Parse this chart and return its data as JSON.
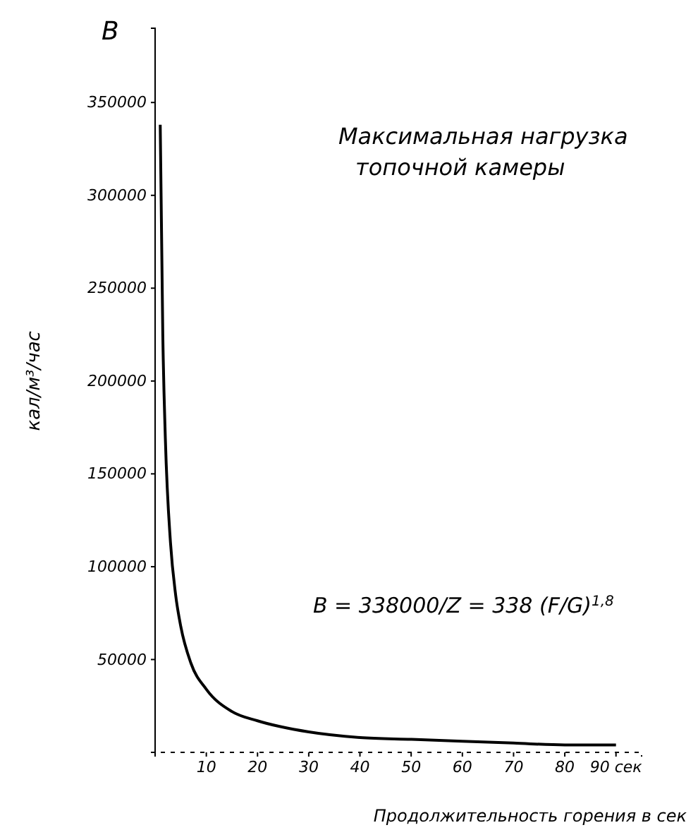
{
  "chart_data": {
    "type": "line",
    "title": "Максимальная нагрузка топочной камеры",
    "xlabel": "Продолжительность горения в сек",
    "ylabel": "кал/м³/час",
    "annotations": [
      "B",
      "B = 338000/Z = 338 (F/G)$^{1,8}$"
    ],
    "x": [
      1,
      1.5,
      2,
      3,
      4,
      5,
      7,
      10,
      15,
      20,
      30,
      40,
      50,
      60,
      70,
      80,
      90
    ],
    "series": [
      {
        "color": "#000000",
        "values": [
          338000,
          225000,
          169000,
          113000,
          85000,
          68000,
          48000,
          34000,
          22000,
          17000,
          11000,
          8000,
          7000,
          6000,
          5000,
          4000,
          4000
        ]
      }
    ],
    "xlim": [
      0,
      95
    ],
    "xticks": [
      10,
      20,
      30,
      40,
      50,
      60,
      70,
      80,
      {
        "value": 90,
        "label": "90 сек"
      }
    ],
    "ylim": [
      0,
      390000
    ],
    "yticks": [
      50000,
      100000,
      150000,
      200000,
      250000,
      300000,
      350000
    ],
    "marker": "none",
    "line_style": "solid"
  }
}
